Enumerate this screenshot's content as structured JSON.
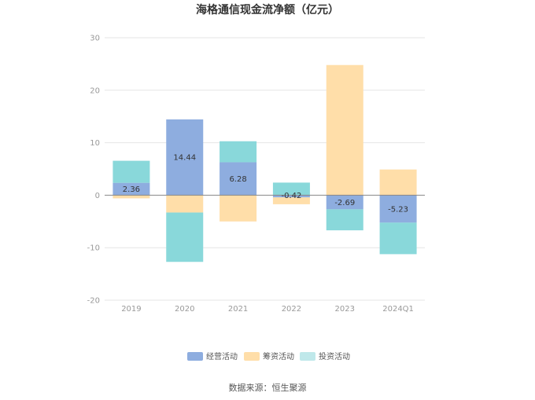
{
  "chart_data": {
    "type": "bar",
    "stacked": true,
    "title": "海格通信现金流净额（亿元）",
    "categories": [
      "2019",
      "2020",
      "2021",
      "2022",
      "2023",
      "2024Q1"
    ],
    "series": [
      {
        "name": "经营活动",
        "color": "#8EADDF",
        "values": [
          2.36,
          14.44,
          6.28,
          -0.42,
          -2.69,
          -5.23
        ],
        "show_labels": true
      },
      {
        "name": "筹资活动",
        "color": "#FFDEA9",
        "values": [
          -0.6,
          -3.3,
          -5.0,
          -1.3,
          24.8,
          4.9
        ],
        "show_labels": false
      },
      {
        "name": "投资活动",
        "color": "#89D8DA",
        "values": [
          4.2,
          -9.4,
          4.0,
          2.4,
          -4.0,
          -6.0
        ],
        "show_labels": false
      }
    ],
    "data_labels": [
      "2.36",
      "14.44",
      "6.28",
      "-0.42",
      "-2.69",
      "-5.23"
    ],
    "yticks": [
      30,
      20,
      10,
      0,
      -10,
      -20
    ],
    "ylim": [
      -20,
      30
    ],
    "xlabel": "",
    "ylabel": "",
    "grid": true,
    "legend_position": "bottom-center",
    "legend_swatch_colors": [
      "#8EADDF",
      "#FFDEA9",
      "#BFE8EA"
    ]
  },
  "source": "数据来源：恒生聚源"
}
